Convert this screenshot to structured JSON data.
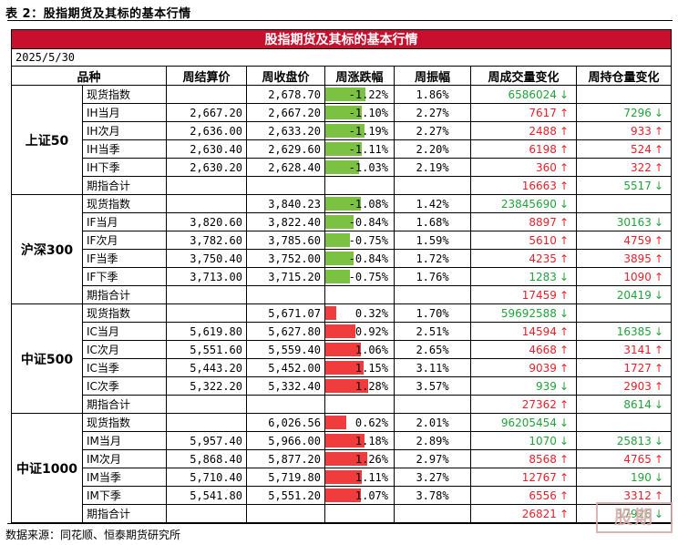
{
  "caption": "表 2：股指期货及其标的基本行情",
  "table_title": "股指期货及其标的基本行情",
  "date": "2025/5/30",
  "headers": [
    "品种",
    "周结算价",
    "周收盘价",
    "周涨跌幅",
    "周振幅",
    "周成交量变化",
    "周持仓量变化"
  ],
  "groups": [
    {
      "name": "上证50",
      "rows": [
        {
          "label": "现货指数",
          "settle": "",
          "close": "2,678.70",
          "chg_pct": "-1.22%",
          "chg_val": -1.22,
          "amp": "1.86%",
          "vol": "6586024",
          "vol_dir": "down",
          "oi": "",
          "oi_dir": ""
        },
        {
          "label": "IH当月",
          "settle": "2,667.20",
          "close": "2,667.20",
          "chg_pct": "-1.10%",
          "chg_val": -1.1,
          "amp": "2.27%",
          "vol": "7617",
          "vol_dir": "up",
          "oi": "7296",
          "oi_dir": "down"
        },
        {
          "label": "IH次月",
          "settle": "2,636.00",
          "close": "2,633.20",
          "chg_pct": "-1.19%",
          "chg_val": -1.19,
          "amp": "2.27%",
          "vol": "2488",
          "vol_dir": "up",
          "oi": "933",
          "oi_dir": "up"
        },
        {
          "label": "IH当季",
          "settle": "2,630.40",
          "close": "2,629.60",
          "chg_pct": "-1.11%",
          "chg_val": -1.11,
          "amp": "2.20%",
          "vol": "6198",
          "vol_dir": "up",
          "oi": "524",
          "oi_dir": "up"
        },
        {
          "label": "IH下季",
          "settle": "2,630.20",
          "close": "2,628.40",
          "chg_pct": "-1.03%",
          "chg_val": -1.03,
          "amp": "2.19%",
          "vol": "360",
          "vol_dir": "up",
          "oi": "322",
          "oi_dir": "up"
        },
        {
          "label": "期指合计",
          "settle": "",
          "close": "",
          "chg_pct": "",
          "chg_val": null,
          "amp": "",
          "vol": "16663",
          "vol_dir": "up",
          "oi": "5517",
          "oi_dir": "down"
        }
      ]
    },
    {
      "name": "沪深300",
      "rows": [
        {
          "label": "现货指数",
          "settle": "",
          "close": "3,840.23",
          "chg_pct": "-1.08%",
          "chg_val": -1.08,
          "amp": "1.42%",
          "vol": "23845690",
          "vol_dir": "down",
          "oi": "",
          "oi_dir": ""
        },
        {
          "label": "IF当月",
          "settle": "3,820.60",
          "close": "3,822.40",
          "chg_pct": "-0.84%",
          "chg_val": -0.84,
          "amp": "1.68%",
          "vol": "8897",
          "vol_dir": "up",
          "oi": "30163",
          "oi_dir": "down"
        },
        {
          "label": "IF次月",
          "settle": "3,782.60",
          "close": "3,785.60",
          "chg_pct": "-0.75%",
          "chg_val": -0.75,
          "amp": "1.59%",
          "vol": "5610",
          "vol_dir": "up",
          "oi": "4759",
          "oi_dir": "up"
        },
        {
          "label": "IF当季",
          "settle": "3,750.40",
          "close": "3,752.00",
          "chg_pct": "-0.84%",
          "chg_val": -0.84,
          "amp": "1.72%",
          "vol": "4235",
          "vol_dir": "up",
          "oi": "3895",
          "oi_dir": "up"
        },
        {
          "label": "IF下季",
          "settle": "3,713.00",
          "close": "3,715.20",
          "chg_pct": "-0.75%",
          "chg_val": -0.75,
          "amp": "1.76%",
          "vol": "1283",
          "vol_dir": "down",
          "oi": "1090",
          "oi_dir": "up"
        },
        {
          "label": "期指合计",
          "settle": "",
          "close": "",
          "chg_pct": "",
          "chg_val": null,
          "amp": "",
          "vol": "17459",
          "vol_dir": "up",
          "oi": "20419",
          "oi_dir": "down"
        }
      ]
    },
    {
      "name": "中证500",
      "rows": [
        {
          "label": "现货指数",
          "settle": "",
          "close": "5,671.07",
          "chg_pct": "0.32%",
          "chg_val": 0.32,
          "amp": "1.70%",
          "vol": "59692588",
          "vol_dir": "down",
          "oi": "",
          "oi_dir": ""
        },
        {
          "label": "IC当月",
          "settle": "5,619.80",
          "close": "5,627.80",
          "chg_pct": "0.92%",
          "chg_val": 0.92,
          "amp": "2.51%",
          "vol": "14594",
          "vol_dir": "up",
          "oi": "16385",
          "oi_dir": "down"
        },
        {
          "label": "IC次月",
          "settle": "5,551.60",
          "close": "5,559.40",
          "chg_pct": "1.06%",
          "chg_val": 1.06,
          "amp": "2.65%",
          "vol": "4668",
          "vol_dir": "up",
          "oi": "3141",
          "oi_dir": "up"
        },
        {
          "label": "IC当季",
          "settle": "5,443.20",
          "close": "5,452.00",
          "chg_pct": "1.15%",
          "chg_val": 1.15,
          "amp": "3.11%",
          "vol": "9039",
          "vol_dir": "up",
          "oi": "1727",
          "oi_dir": "up"
        },
        {
          "label": "IC次季",
          "settle": "5,322.20",
          "close": "5,332.40",
          "chg_pct": "1.28%",
          "chg_val": 1.28,
          "amp": "3.57%",
          "vol": "939",
          "vol_dir": "down",
          "oi": "2903",
          "oi_dir": "up"
        },
        {
          "label": "期指合计",
          "settle": "",
          "close": "",
          "chg_pct": "",
          "chg_val": null,
          "amp": "",
          "vol": "27362",
          "vol_dir": "up",
          "oi": "8614",
          "oi_dir": "down"
        }
      ]
    },
    {
      "name": "中证1000",
      "rows": [
        {
          "label": "现货指数",
          "settle": "",
          "close": "6,026.56",
          "chg_pct": "0.62%",
          "chg_val": 0.62,
          "amp": "2.01%",
          "vol": "96205454",
          "vol_dir": "down",
          "oi": "",
          "oi_dir": ""
        },
        {
          "label": "IM当月",
          "settle": "5,957.40",
          "close": "5,966.00",
          "chg_pct": "1.18%",
          "chg_val": 1.18,
          "amp": "2.89%",
          "vol": "1070",
          "vol_dir": "down",
          "oi": "25813",
          "oi_dir": "down"
        },
        {
          "label": "IM次月",
          "settle": "5,868.40",
          "close": "5,877.20",
          "chg_pct": "1.26%",
          "chg_val": 1.26,
          "amp": "2.97%",
          "vol": "8568",
          "vol_dir": "up",
          "oi": "4765",
          "oi_dir": "up"
        },
        {
          "label": "IM当季",
          "settle": "5,710.40",
          "close": "5,719.80",
          "chg_pct": "1.11%",
          "chg_val": 1.11,
          "amp": "3.27%",
          "vol": "12767",
          "vol_dir": "up",
          "oi": "190",
          "oi_dir": "down"
        },
        {
          "label": "IM下季",
          "settle": "5,541.80",
          "close": "5,551.20",
          "chg_pct": "1.07%",
          "chg_val": 1.07,
          "amp": "3.78%",
          "vol": "6556",
          "vol_dir": "up",
          "oi": "3312",
          "oi_dir": "up"
        },
        {
          "label": "期指合计",
          "settle": "",
          "close": "",
          "chg_pct": "",
          "chg_val": null,
          "amp": "",
          "vol": "26821",
          "vol_dir": "up",
          "oi": "17926",
          "oi_dir": "down"
        }
      ]
    }
  ],
  "colors": {
    "title_bg": "#c8102e",
    "up": "#e8212a",
    "down": "#22a33a",
    "neg_bar": "#7cc242",
    "pos_bar": "#f03c3c"
  },
  "source": "数据来源：同花顺、恒泰期货研究所",
  "watermark": "股期"
}
